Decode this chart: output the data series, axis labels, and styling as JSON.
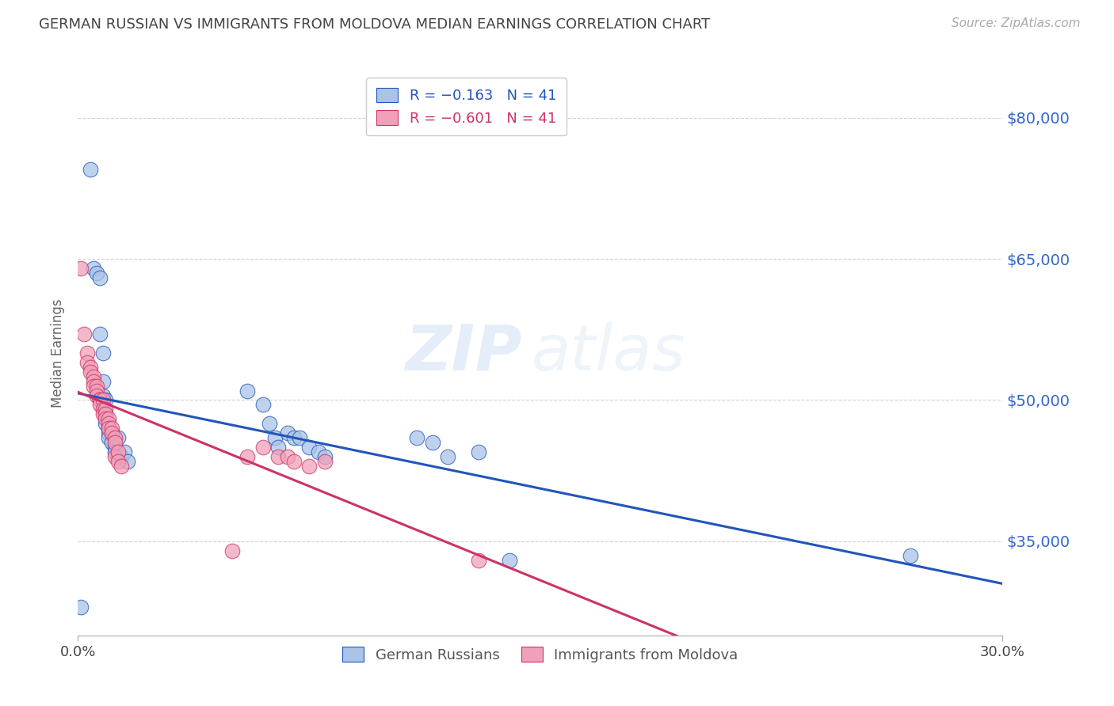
{
  "title": "GERMAN RUSSIAN VS IMMIGRANTS FROM MOLDOVA MEDIAN EARNINGS CORRELATION CHART",
  "source": "Source: ZipAtlas.com",
  "ylabel": "Median Earnings",
  "y_ticks": [
    35000,
    50000,
    65000,
    80000
  ],
  "y_tick_labels": [
    "$35,000",
    "$50,000",
    "$65,000",
    "$80,000"
  ],
  "x_min": 0.0,
  "x_max": 0.3,
  "y_min": 25000,
  "y_max": 85000,
  "legend_label_blue": "German Russians",
  "legend_label_pink": "Immigrants from Moldova",
  "watermark_zip": "ZIP",
  "watermark_atlas": "atlas",
  "blue_color": "#aac4e8",
  "blue_line_color": "#2255bb",
  "pink_color": "#f0a0b8",
  "pink_line_color": "#cc3366",
  "scatter_blue_x": [
    0.001,
    0.004,
    0.005,
    0.006,
    0.007,
    0.007,
    0.008,
    0.008,
    0.008,
    0.009,
    0.009,
    0.009,
    0.01,
    0.01,
    0.01,
    0.011,
    0.011,
    0.012,
    0.012,
    0.013,
    0.013,
    0.014,
    0.015,
    0.016,
    0.055,
    0.06,
    0.062,
    0.064,
    0.065,
    0.068,
    0.07,
    0.072,
    0.075,
    0.078,
    0.08,
    0.11,
    0.115,
    0.12,
    0.13,
    0.14,
    0.27
  ],
  "scatter_blue_y": [
    28000,
    74500,
    64000,
    63500,
    63000,
    57000,
    55000,
    52000,
    50500,
    50000,
    48500,
    47500,
    47000,
    46500,
    46000,
    46500,
    45500,
    45000,
    44500,
    46000,
    44000,
    44000,
    44500,
    43500,
    51000,
    49500,
    47500,
    46000,
    45000,
    46500,
    46000,
    46000,
    45000,
    44500,
    44000,
    46000,
    45500,
    44000,
    44500,
    33000,
    33500
  ],
  "scatter_pink_x": [
    0.001,
    0.002,
    0.003,
    0.003,
    0.004,
    0.004,
    0.005,
    0.005,
    0.005,
    0.006,
    0.006,
    0.006,
    0.007,
    0.007,
    0.007,
    0.008,
    0.008,
    0.008,
    0.009,
    0.009,
    0.009,
    0.01,
    0.01,
    0.01,
    0.011,
    0.011,
    0.012,
    0.012,
    0.012,
    0.013,
    0.013,
    0.014,
    0.05,
    0.055,
    0.06,
    0.065,
    0.068,
    0.07,
    0.075,
    0.08,
    0.13
  ],
  "scatter_pink_y": [
    64000,
    57000,
    55000,
    54000,
    53500,
    53000,
    52500,
    52000,
    51500,
    51500,
    51000,
    50500,
    50000,
    50000,
    49500,
    50000,
    49000,
    48500,
    49000,
    48500,
    48000,
    48000,
    47500,
    47000,
    47000,
    46500,
    46000,
    45500,
    44000,
    44500,
    43500,
    43000,
    34000,
    44000,
    45000,
    44000,
    44000,
    43500,
    43000,
    43500,
    33000
  ],
  "background_color": "#ffffff",
  "grid_color": "#cccccc",
  "title_color": "#444444",
  "right_label_color": "#3366cc",
  "source_color": "#aaaaaa"
}
